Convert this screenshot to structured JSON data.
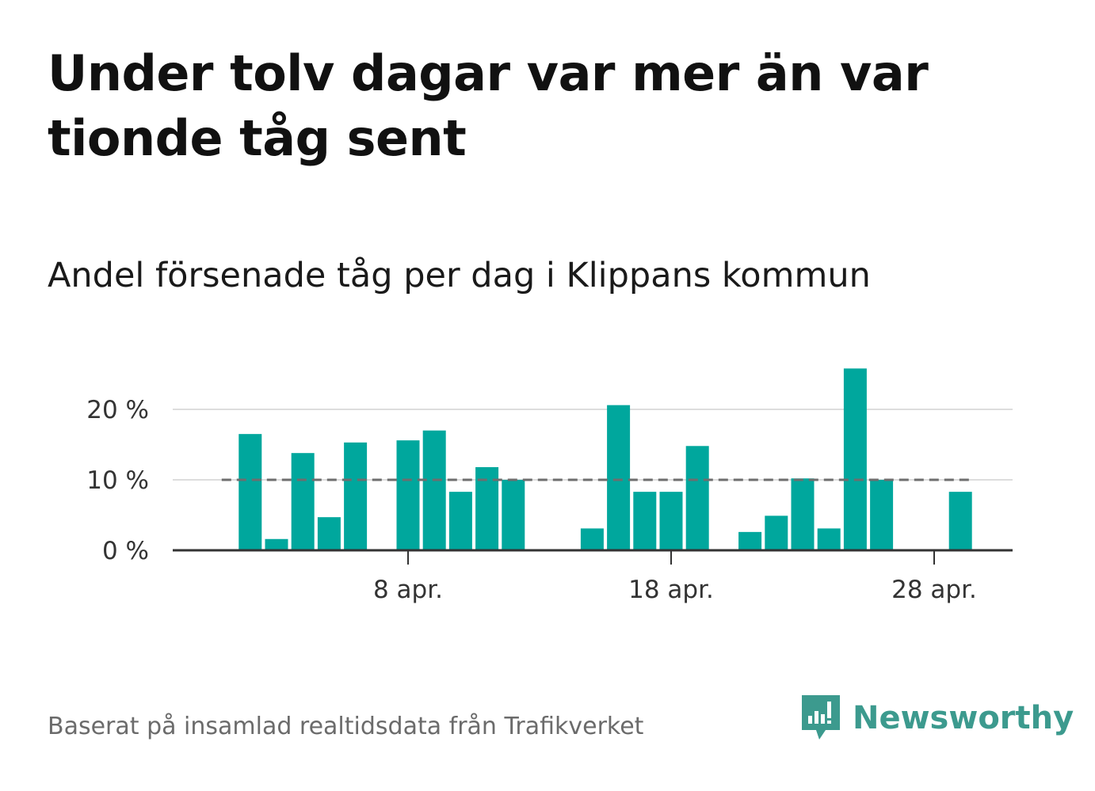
{
  "title": "Under tolv dagar var mer än var tionde tåg sent",
  "subtitle": "Andel försenade tåg per dag i Klippans kommun",
  "source": "Baserat på insamlad realtidsdata från Trafikverket",
  "logo": {
    "text": "Newsworthy",
    "icon": "newsworthy-logo-icon",
    "color": "#3c9a8e"
  },
  "chart_data": {
    "type": "bar",
    "title": "Andel försenade tåg per dag i Klippans kommun",
    "xlabel": "",
    "ylabel": "",
    "x_unit": "day of April",
    "bar_color": "#00a79d",
    "grid": true,
    "ylim": [
      0,
      26
    ],
    "y_ticks": [
      0,
      10,
      20
    ],
    "y_tick_labels": [
      "0 %",
      "10 %",
      "20 %"
    ],
    "x_ticks": [
      8,
      18,
      28
    ],
    "x_tick_labels": [
      "8 apr.",
      "18 apr.",
      "28 apr."
    ],
    "reference_line": {
      "value": 10,
      "style": "dashed",
      "color": "#6e6e6e"
    },
    "x": [
      2,
      3,
      4,
      5,
      6,
      7,
      8,
      9,
      10,
      11,
      12,
      13,
      14,
      15,
      16,
      17,
      18,
      19,
      20,
      21,
      22,
      23,
      24,
      25,
      26,
      27,
      28,
      29
    ],
    "values": [
      16.5,
      1.6,
      13.8,
      4.7,
      15.3,
      0,
      15.6,
      17.0,
      8.3,
      11.8,
      10.0,
      0,
      0,
      3.1,
      20.6,
      8.3,
      8.3,
      14.8,
      0,
      2.6,
      4.9,
      10.2,
      3.1,
      25.8,
      10.0,
      0,
      0,
      8.3
    ]
  }
}
